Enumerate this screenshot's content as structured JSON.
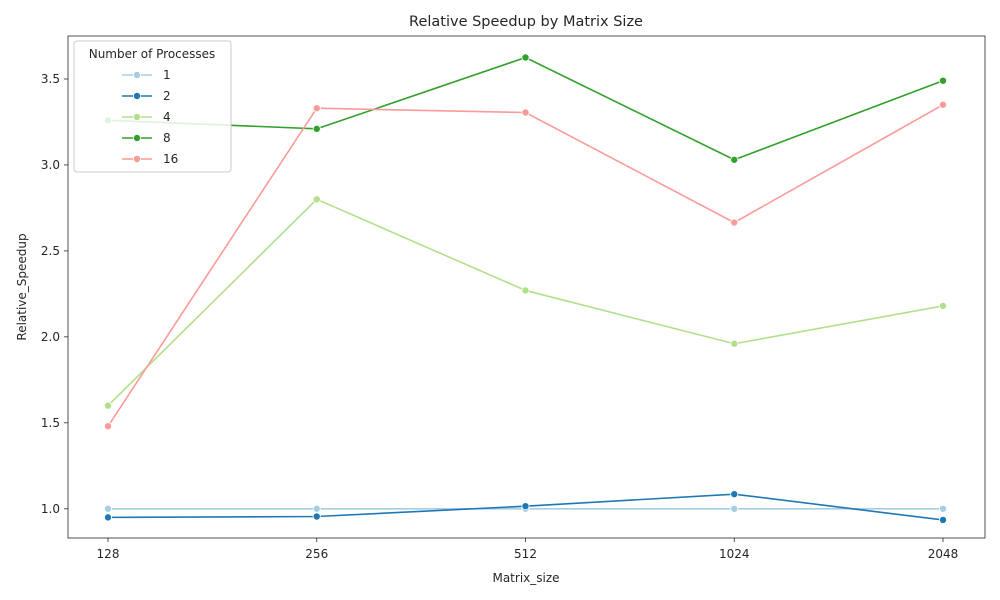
{
  "chart_data": {
    "type": "line",
    "title": "Relative Speedup by Matrix Size",
    "xlabel": "Matrix_size",
    "ylabel": "Relative_Speedup",
    "categories": [
      "128",
      "256",
      "512",
      "1024",
      "2048"
    ],
    "ylim": [
      0.83,
      3.75
    ],
    "yticks": [
      "1.0",
      "1.5",
      "2.0",
      "2.5",
      "3.0",
      "3.5"
    ],
    "grid": false,
    "legend": {
      "title": "Number of Processes",
      "placement": "top-left"
    },
    "series": [
      {
        "name": "1",
        "color": "#a6cee3",
        "values": [
          1.0,
          1.0,
          1.0,
          1.0,
          1.0
        ]
      },
      {
        "name": "2",
        "color": "#1f78b4",
        "values": [
          0.95,
          0.955,
          1.015,
          1.085,
          0.935
        ]
      },
      {
        "name": "4",
        "color": "#b2df8a",
        "values": [
          1.6,
          2.8,
          2.27,
          1.96,
          2.18
        ]
      },
      {
        "name": "8",
        "color": "#33a02c",
        "values": [
          3.26,
          3.21,
          3.625,
          3.03,
          3.49
        ]
      },
      {
        "name": "16",
        "color": "#fb9a99",
        "values": [
          1.48,
          3.33,
          3.305,
          2.665,
          3.35
        ]
      }
    ]
  }
}
